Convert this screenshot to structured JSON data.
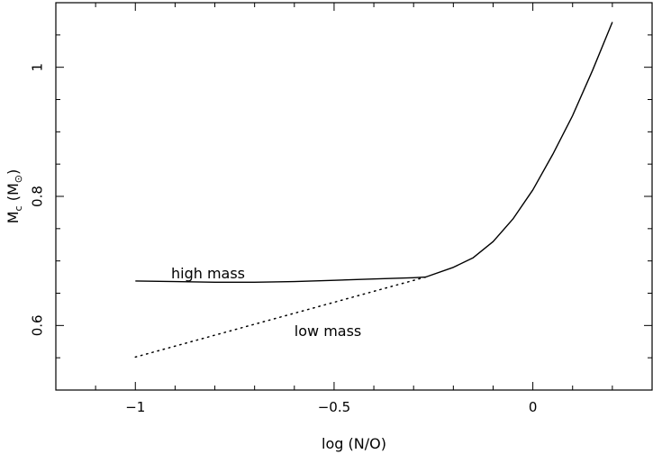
{
  "chart_data": {
    "type": "line",
    "title": "",
    "xlabel": "log (N/O)",
    "ylabel": {
      "main": "M",
      "main_sub": "c",
      "paren_open": " (M",
      "sun_sub": "⊙",
      "paren_close": ")"
    },
    "xlim": [
      -1.2,
      0.3
    ],
    "ylim": [
      0.5,
      1.1
    ],
    "x_ticks": [
      {
        "value": -1,
        "label": "−1"
      },
      {
        "value": -0.5,
        "label": "−0.5"
      },
      {
        "value": 0,
        "label": "0"
      }
    ],
    "y_ticks": [
      {
        "value": 0.6,
        "label": "0.6"
      },
      {
        "value": 0.8,
        "label": "0.8"
      },
      {
        "value": 1.0,
        "label": "1"
      }
    ],
    "x_minor_step": 0.1,
    "y_minor_step": 0.05,
    "grid": false,
    "series": [
      {
        "name": "high mass",
        "style": "solid",
        "color": "#000000",
        "points": [
          [
            -1.0,
            0.669
          ],
          [
            -0.9,
            0.668
          ],
          [
            -0.8,
            0.667
          ],
          [
            -0.7,
            0.667
          ],
          [
            -0.6,
            0.668
          ],
          [
            -0.5,
            0.67
          ],
          [
            -0.4,
            0.672
          ],
          [
            -0.3,
            0.674
          ],
          [
            -0.27,
            0.675
          ],
          [
            -0.2,
            0.69
          ],
          [
            -0.15,
            0.705
          ],
          [
            -0.1,
            0.73
          ],
          [
            -0.05,
            0.765
          ],
          [
            0.0,
            0.81
          ],
          [
            0.05,
            0.865
          ],
          [
            0.1,
            0.925
          ],
          [
            0.15,
            0.995
          ],
          [
            0.2,
            1.07
          ]
        ]
      },
      {
        "name": "low mass",
        "style": "dotted",
        "color": "#000000",
        "points": [
          [
            -1.0,
            0.551
          ],
          [
            -0.27,
            0.675
          ]
        ]
      }
    ],
    "annotations": [
      {
        "text": "high mass",
        "x": -0.91,
        "y": 0.673
      },
      {
        "text": "low mass",
        "x": -0.6,
        "y": 0.584
      }
    ]
  }
}
